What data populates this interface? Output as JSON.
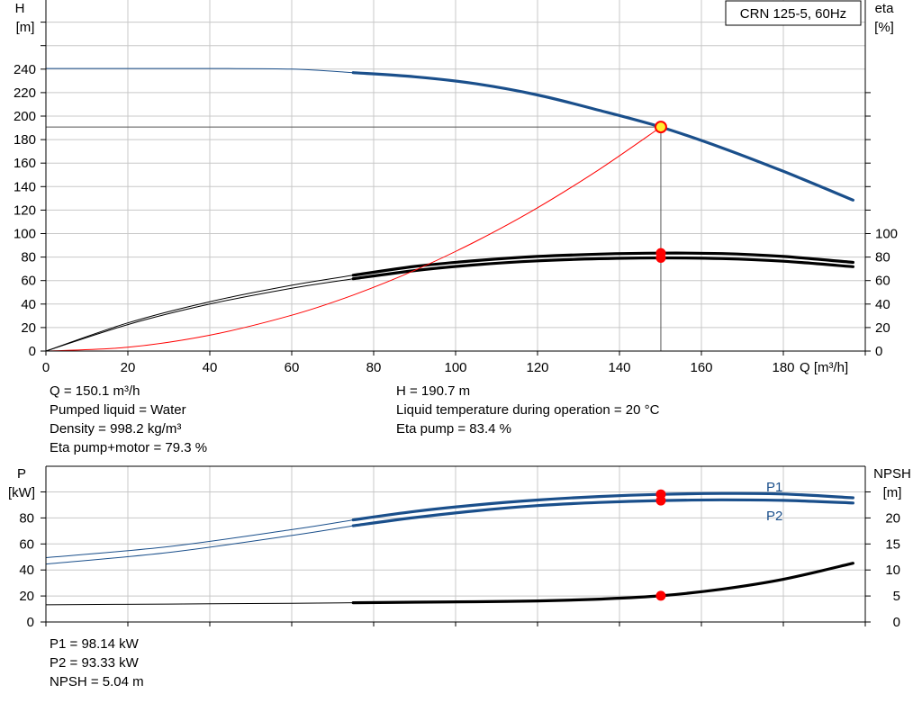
{
  "title": "CRN 125-5, 60Hz",
  "top_chart": {
    "y_left_label": [
      "H",
      "[m]"
    ],
    "y_right_label": [
      "eta",
      "[%]"
    ],
    "x_label": "Q [m³/h]"
  },
  "bottom_chart": {
    "y_left_label": [
      "P",
      "[kW]"
    ],
    "y_right_label": [
      "NPSH",
      "[m]"
    ],
    "series_labels": {
      "p1": "P1",
      "p2": "P2"
    }
  },
  "info_top": {
    "left": [
      "Q = 150.1 m³/h",
      "Pumped liquid = Water",
      "Density = 998.2 kg/m³",
      "Eta pump+motor = 79.3 %"
    ],
    "right": [
      "H = 190.7 m",
      "Liquid temperature during operation = 20 °C",
      "Eta pump = 83.4 %"
    ]
  },
  "info_bottom": [
    "P1 = 98.14 kW",
    "P2 = 93.33 kW",
    "NPSH = 5.04 m"
  ],
  "colors": {
    "blue": "#1a4f8b",
    "black": "#000000",
    "red": "#ff0000",
    "marker_fill": "#ffee33",
    "grid": "#c8c8c8"
  },
  "chart_data": [
    {
      "type": "line",
      "name": "head-efficiency",
      "xlim": [
        0,
        200
      ],
      "x_ticks": [
        0,
        20,
        40,
        60,
        80,
        100,
        120,
        140,
        160,
        180
      ],
      "y_left_ticks": [
        0,
        20,
        40,
        60,
        80,
        100,
        120,
        140,
        160,
        180,
        200,
        220,
        240
      ],
      "y_right_ticks": [
        0,
        20,
        40,
        60,
        80,
        100
      ],
      "grid": true,
      "operating_point": {
        "Q": 150.1,
        "H": 190.7,
        "eta_pump": 83.4,
        "eta_total": 79.3
      },
      "series": [
        {
          "key": "head",
          "color": "blue",
          "x": [
            0,
            20,
            40,
            60,
            75,
            90,
            105,
            120,
            135,
            150.1,
            165,
            180,
            197
          ],
          "y": [
            240.5,
            240.5,
            240.5,
            240,
            237,
            233.5,
            227.5,
            218,
            205,
            190.7,
            173,
            153,
            128.5
          ],
          "thin_until": 75
        },
        {
          "key": "eta_pump",
          "color": "black",
          "x": [
            0,
            20,
            40,
            60,
            75,
            90,
            105,
            120,
            135,
            150.1,
            165,
            180,
            197
          ],
          "y": [
            0,
            24,
            42,
            56,
            64.5,
            72,
            77,
            80.5,
            82.5,
            83.4,
            83,
            80.5,
            75.5
          ],
          "thin_until": 75
        },
        {
          "key": "eta_total",
          "color": "black",
          "x": [
            0,
            20,
            40,
            60,
            75,
            90,
            105,
            120,
            135,
            150.1,
            165,
            180,
            197
          ],
          "y": [
            0,
            22.5,
            40,
            53.5,
            61.5,
            68.5,
            73.5,
            76.8,
            78.6,
            79.3,
            78.7,
            76.5,
            71.8
          ],
          "thin_until": 75
        },
        {
          "key": "system_curve",
          "color": "red",
          "x": [
            0,
            20,
            40,
            60,
            75,
            90,
            105,
            120,
            135,
            150.1
          ],
          "y": [
            0,
            3.2,
            13.5,
            30.5,
            47.7,
            68.7,
            93.5,
            122,
            154.5,
            190.7
          ]
        }
      ]
    },
    {
      "type": "line",
      "name": "power-npsh",
      "xlim": [
        0,
        200
      ],
      "y_left_ticks": [
        0,
        20,
        40,
        60,
        80
      ],
      "y_right_ticks": [
        0,
        5,
        10,
        15,
        20
      ],
      "grid": true,
      "operating_point": {
        "Q": 150.1,
        "P1": 98.14,
        "P2": 93.33,
        "NPSH": 5.04
      },
      "series": [
        {
          "key": "p1",
          "name": "P1",
          "color": "blue",
          "x": [
            0,
            30,
            60,
            75,
            90,
            105,
            120,
            135,
            150.1,
            165,
            180,
            197
          ],
          "y": [
            49.5,
            58,
            71,
            78.5,
            85,
            90,
            93.8,
            96.5,
            98.14,
            98.8,
            98.4,
            95.5
          ],
          "thin_until": 75
        },
        {
          "key": "p2",
          "name": "P2",
          "color": "blue",
          "x": [
            0,
            30,
            60,
            75,
            90,
            105,
            120,
            135,
            150.1,
            165,
            180,
            197
          ],
          "y": [
            44.5,
            53.5,
            66.5,
            74,
            80.3,
            85.5,
            89.5,
            91.9,
            93.33,
            93.9,
            93.5,
            91.5
          ],
          "thin_until": 75
        },
        {
          "key": "npsh",
          "color": "black",
          "axis": "right",
          "x": [
            0,
            30,
            60,
            75,
            90,
            105,
            120,
            135,
            150.1,
            165,
            180,
            197
          ],
          "y": [
            3.3,
            3.45,
            3.6,
            3.7,
            3.8,
            3.9,
            4.05,
            4.4,
            5.04,
            6.3,
            8.2,
            11.3
          ],
          "thin_until": 75
        }
      ]
    }
  ]
}
